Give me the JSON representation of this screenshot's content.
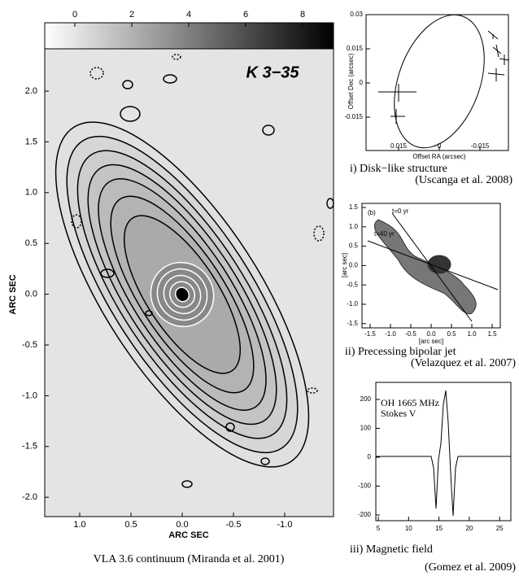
{
  "main_panel": {
    "title": "K 3−35",
    "colorbar_ticks": [
      "0",
      "2",
      "4",
      "6",
      "8"
    ],
    "y_ticks": [
      "2.0",
      "1.5",
      "1.0",
      "0.5",
      "0.0",
      "-0.5",
      "-1.0",
      "-1.5",
      "-2.0"
    ],
    "x_ticks": [
      "1.0",
      "0.5",
      "0.0",
      "-0.5",
      "-1.0"
    ],
    "x_label": "ARC SEC",
    "y_label": "ARC SEC",
    "caption": "VLA 3.6 continuum (Miranda et al. 2001)"
  },
  "panel_i": {
    "y_ticks": [
      "0.03",
      "0.015",
      "0",
      "-0.015"
    ],
    "x_ticks": [
      "0.015",
      "0",
      "-0.015"
    ],
    "x_label": "Offset RA (arcsec)",
    "y_label": "Offset Dec (arcsec)",
    "caption": "i) Disk−like structure",
    "source": "(Uscanga et al. 2008)"
  },
  "panel_ii": {
    "label": "(b)",
    "annotations": [
      "t=0 yr",
      "t=40 yr"
    ],
    "y_ticks": [
      "1.5",
      "1.0",
      "0.5",
      "0.0",
      "-0.5",
      "-1.0",
      "-1.5"
    ],
    "x_ticks": [
      "-1.5",
      "-1.0",
      "-0.5",
      "0.0",
      "0.5",
      "1.0",
      "1.5"
    ],
    "x_label": "[arc sec]",
    "y_label": "[arc sec]",
    "caption": "ii) Precessing bipolar jet",
    "source": "(Velazquez et al. 2007)"
  },
  "panel_iii": {
    "legend": [
      "OH 1665 MHz",
      "Stokes V"
    ],
    "y_ticks": [
      "200",
      "100",
      "0",
      "-100",
      "-200"
    ],
    "x_ticks": [
      "5",
      "10",
      "15",
      "20",
      "25"
    ],
    "caption": "iii) Magnetic field",
    "source": "(Gomez et al. 2009)"
  }
}
